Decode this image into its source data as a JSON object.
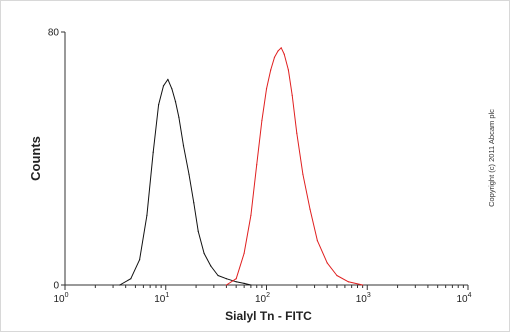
{
  "chart_data": {
    "type": "line",
    "xlabel": "Sialyl Tn - FITC",
    "ylabel": "Counts",
    "x_scale": "log",
    "xlim": [
      1,
      10000
    ],
    "ylim": [
      0,
      80
    ],
    "x_ticks": [
      {
        "base": "10",
        "exp": "0",
        "value": 1
      },
      {
        "base": "10",
        "exp": "1",
        "value": 10
      },
      {
        "base": "10",
        "exp": "2",
        "value": 100
      },
      {
        "base": "10",
        "exp": "3",
        "value": 1000
      },
      {
        "base": "10",
        "exp": "4",
        "value": 10000
      }
    ],
    "y_ticks": [
      {
        "label": "0",
        "value": 0
      },
      {
        "label": "80",
        "value": 80
      }
    ],
    "grid": false,
    "legend": "none",
    "annotation": "Copyright (c) 2011 Abcam plc",
    "series": [
      {
        "color": "#111111",
        "x": [
          3.5,
          4.5,
          5.5,
          6.5,
          7.5,
          8.5,
          9.5,
          10.5,
          11.5,
          12.5,
          13.5,
          15,
          17,
          19,
          21,
          24,
          28,
          33,
          40,
          50,
          60,
          70
        ],
        "y": [
          0,
          2,
          8,
          22,
          42,
          57,
          63,
          65,
          62,
          58,
          53,
          44,
          35,
          26,
          17,
          10,
          6,
          3,
          2,
          1,
          0.5,
          0
        ]
      },
      {
        "color": "#e02020",
        "x": [
          40,
          50,
          60,
          70,
          80,
          90,
          100,
          110,
          120,
          130,
          140,
          150,
          165,
          180,
          200,
          230,
          270,
          320,
          400,
          500,
          650,
          900
        ],
        "y": [
          0,
          2,
          10,
          22,
          38,
          52,
          62,
          68,
          72,
          74,
          75,
          73,
          68,
          60,
          48,
          35,
          24,
          14,
          7,
          3,
          1,
          0
        ]
      }
    ]
  }
}
